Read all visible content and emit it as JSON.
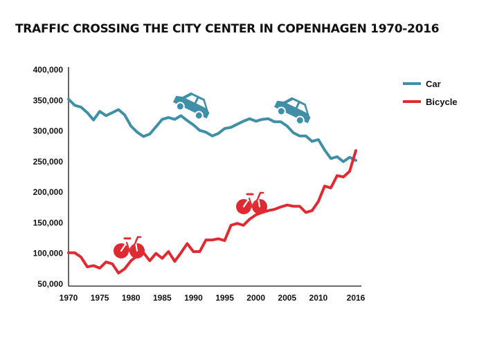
{
  "chart_data": {
    "type": "line",
    "title": "TRAFFIC CROSSING THE CITY CENTER IN COPENHAGEN 1970-2016",
    "xlabel": "",
    "ylabel": "",
    "xlim": [
      1970,
      2016
    ],
    "ylim": [
      50000,
      400000
    ],
    "x_ticks": [
      1970,
      1975,
      1980,
      1985,
      1990,
      1995,
      2000,
      2005,
      2010,
      2016
    ],
    "x_tick_labels": [
      "1970",
      "1975",
      "1980",
      "1985",
      "1990",
      "1995",
      "2000",
      "2005",
      "2010",
      "2016"
    ],
    "y_ticks": [
      50000,
      100000,
      150000,
      200000,
      250000,
      300000,
      350000,
      400000
    ],
    "y_tick_labels": [
      "50,000",
      "100,000",
      "150,000",
      "200,000",
      "250,000",
      "300,000",
      "350,000",
      "400,000"
    ],
    "grid": false,
    "legend_position": "top-right",
    "series": [
      {
        "name": "Car",
        "color": "#3f8fa6",
        "points": [
          [
            1970,
            352000
          ],
          [
            1971,
            342000
          ],
          [
            1972,
            339000
          ],
          [
            1973,
            330000
          ],
          [
            1974,
            318000
          ],
          [
            1975,
            332000
          ],
          [
            1976,
            325000
          ],
          [
            1977,
            330000
          ],
          [
            1978,
            335000
          ],
          [
            1979,
            326000
          ],
          [
            1980,
            308000
          ],
          [
            1981,
            298000
          ],
          [
            1982,
            291000
          ],
          [
            1983,
            295000
          ],
          [
            1984,
            307000
          ],
          [
            1985,
            319000
          ],
          [
            1986,
            322000
          ],
          [
            1987,
            319000
          ],
          [
            1988,
            325000
          ],
          [
            1989,
            317000
          ],
          [
            1990,
            310000
          ],
          [
            1991,
            301000
          ],
          [
            1992,
            298000
          ],
          [
            1993,
            292000
          ],
          [
            1994,
            296000
          ],
          [
            1995,
            304000
          ],
          [
            1996,
            306000
          ],
          [
            1997,
            311000
          ],
          [
            1998,
            316000
          ],
          [
            1999,
            320000
          ],
          [
            2000,
            316000
          ],
          [
            2001,
            319000
          ],
          [
            2002,
            320000
          ],
          [
            2003,
            315000
          ],
          [
            2004,
            315000
          ],
          [
            2005,
            308000
          ],
          [
            2006,
            297000
          ],
          [
            2007,
            292000
          ],
          [
            2008,
            292000
          ],
          [
            2009,
            283000
          ],
          [
            2010,
            286000
          ],
          [
            2011,
            269000
          ],
          [
            2012,
            255000
          ],
          [
            2013,
            258000
          ],
          [
            2014,
            250000
          ],
          [
            2015,
            257000
          ],
          [
            2016,
            252000
          ]
        ]
      },
      {
        "name": "Bicycle",
        "color": "#e02a32",
        "points": [
          [
            1970,
            101000
          ],
          [
            1971,
            101000
          ],
          [
            1972,
            94000
          ],
          [
            1973,
            78000
          ],
          [
            1974,
            80000
          ],
          [
            1975,
            76000
          ],
          [
            1976,
            86000
          ],
          [
            1977,
            83000
          ],
          [
            1978,
            68000
          ],
          [
            1979,
            75000
          ],
          [
            1980,
            88000
          ],
          [
            1981,
            96000
          ],
          [
            1982,
            101000
          ],
          [
            1983,
            88000
          ],
          [
            1984,
            100000
          ],
          [
            1985,
            92000
          ],
          [
            1986,
            103000
          ],
          [
            1987,
            87000
          ],
          [
            1988,
            101000
          ],
          [
            1989,
            116000
          ],
          [
            1990,
            103000
          ],
          [
            1991,
            103000
          ],
          [
            1992,
            122000
          ],
          [
            1993,
            122000
          ],
          [
            1994,
            124000
          ],
          [
            1995,
            121000
          ],
          [
            1996,
            146000
          ],
          [
            1997,
            149000
          ],
          [
            1998,
            146000
          ],
          [
            1999,
            156000
          ],
          [
            2000,
            163000
          ],
          [
            2001,
            167000
          ],
          [
            2002,
            170000
          ],
          [
            2003,
            172000
          ],
          [
            2004,
            176000
          ],
          [
            2005,
            179000
          ],
          [
            2006,
            177000
          ],
          [
            2007,
            177000
          ],
          [
            2008,
            167000
          ],
          [
            2009,
            170000
          ],
          [
            2010,
            185000
          ],
          [
            2011,
            210000
          ],
          [
            2012,
            207000
          ],
          [
            2013,
            227000
          ],
          [
            2014,
            225000
          ],
          [
            2015,
            234000
          ],
          [
            2016,
            268000
          ]
        ]
      }
    ],
    "icons": [
      {
        "name": "car-icon",
        "color": "#3f8fa6"
      },
      {
        "name": "car-icon",
        "color": "#3f8fa6"
      },
      {
        "name": "bicycle-icon",
        "color": "#e02a32"
      },
      {
        "name": "bicycle-icon",
        "color": "#e02a32"
      }
    ]
  }
}
